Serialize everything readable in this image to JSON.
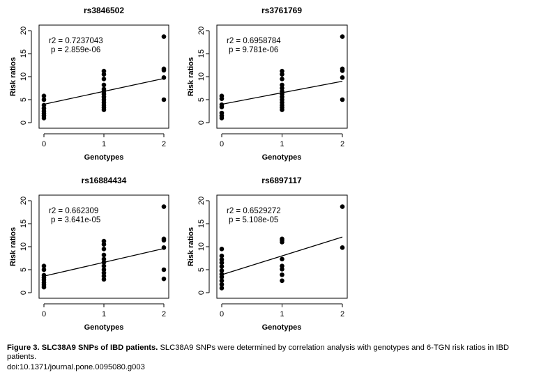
{
  "chart_data": [
    {
      "type": "scatter",
      "title": "rs3846502",
      "xlabel": "Genotypes",
      "ylabel": "Risk ratios",
      "xticks": [
        "0",
        "1",
        "2"
      ],
      "yticks": [
        "0",
        "5",
        "10",
        "15",
        "20"
      ],
      "xlim": [
        0,
        2
      ],
      "ylim": [
        0,
        20
      ],
      "stats": [
        "r2 = 0.7237043",
        "p = 2.859e-06"
      ],
      "fit_line": {
        "intercept": 4.0,
        "slope": 2.8
      },
      "points": [
        {
          "x": 0,
          "y": 5.8
        },
        {
          "x": 0,
          "y": 5.0
        },
        {
          "x": 0,
          "y": 3.8
        },
        {
          "x": 0,
          "y": 3.1
        },
        {
          "x": 0,
          "y": 2.5
        },
        {
          "x": 0,
          "y": 2.0
        },
        {
          "x": 0,
          "y": 1.5
        },
        {
          "x": 0,
          "y": 1.0
        },
        {
          "x": 1,
          "y": 11.2
        },
        {
          "x": 1,
          "y": 10.5
        },
        {
          "x": 1,
          "y": 9.5
        },
        {
          "x": 1,
          "y": 8.2
        },
        {
          "x": 1,
          "y": 7.3
        },
        {
          "x": 1,
          "y": 6.8
        },
        {
          "x": 1,
          "y": 6.2
        },
        {
          "x": 1,
          "y": 5.6
        },
        {
          "x": 1,
          "y": 5.0
        },
        {
          "x": 1,
          "y": 4.4
        },
        {
          "x": 1,
          "y": 3.8
        },
        {
          "x": 1,
          "y": 3.3
        },
        {
          "x": 1,
          "y": 2.8
        },
        {
          "x": 2,
          "y": 18.7
        },
        {
          "x": 2,
          "y": 11.7
        },
        {
          "x": 2,
          "y": 11.4
        },
        {
          "x": 2,
          "y": 9.8
        },
        {
          "x": 2,
          "y": 5.0
        }
      ]
    },
    {
      "type": "scatter",
      "title": "rs3761769",
      "xlabel": "Genotypes",
      "ylabel": "Risk ratios",
      "xticks": [
        "0",
        "1",
        "2"
      ],
      "yticks": [
        "0",
        "5",
        "10",
        "15",
        "20"
      ],
      "xlim": [
        0,
        2
      ],
      "ylim": [
        0,
        20
      ],
      "stats": [
        "r2 = 0.6958784",
        "p = 9.781e-06"
      ],
      "fit_line": {
        "intercept": 4.0,
        "slope": 2.5
      },
      "points": [
        {
          "x": 0,
          "y": 5.8
        },
        {
          "x": 0,
          "y": 5.2
        },
        {
          "x": 0,
          "y": 3.9
        },
        {
          "x": 0,
          "y": 3.4
        },
        {
          "x": 0,
          "y": 2.1
        },
        {
          "x": 0,
          "y": 1.5
        },
        {
          "x": 0,
          "y": 1.0
        },
        {
          "x": 1,
          "y": 11.2
        },
        {
          "x": 1,
          "y": 10.5
        },
        {
          "x": 1,
          "y": 9.5
        },
        {
          "x": 1,
          "y": 8.2
        },
        {
          "x": 1,
          "y": 7.5
        },
        {
          "x": 1,
          "y": 6.8
        },
        {
          "x": 1,
          "y": 6.2
        },
        {
          "x": 1,
          "y": 5.6
        },
        {
          "x": 1,
          "y": 5.0
        },
        {
          "x": 1,
          "y": 4.4
        },
        {
          "x": 1,
          "y": 3.8
        },
        {
          "x": 1,
          "y": 3.3
        },
        {
          "x": 1,
          "y": 2.8
        },
        {
          "x": 2,
          "y": 18.7
        },
        {
          "x": 2,
          "y": 11.7
        },
        {
          "x": 2,
          "y": 11.3
        },
        {
          "x": 2,
          "y": 9.8
        },
        {
          "x": 2,
          "y": 5.0
        }
      ]
    },
    {
      "type": "scatter",
      "title": "rs16884434",
      "xlabel": "Genotypes",
      "ylabel": "Risk ratios",
      "xticks": [
        "0",
        "1",
        "2"
      ],
      "yticks": [
        "0",
        "5",
        "10",
        "15",
        "20"
      ],
      "xlim": [
        0,
        2
      ],
      "ylim": [
        0,
        20
      ],
      "stats": [
        "r2 = 0.662309",
        "p = 3.641e-05"
      ],
      "fit_line": {
        "intercept": 3.6,
        "slope": 3.0
      },
      "points": [
        {
          "x": 0,
          "y": 5.8
        },
        {
          "x": 0,
          "y": 5.0
        },
        {
          "x": 0,
          "y": 3.8
        },
        {
          "x": 0,
          "y": 3.3
        },
        {
          "x": 0,
          "y": 2.8
        },
        {
          "x": 0,
          "y": 2.2
        },
        {
          "x": 0,
          "y": 1.7
        },
        {
          "x": 0,
          "y": 1.2
        },
        {
          "x": 1,
          "y": 11.2
        },
        {
          "x": 1,
          "y": 10.5
        },
        {
          "x": 1,
          "y": 9.5
        },
        {
          "x": 1,
          "y": 8.2
        },
        {
          "x": 1,
          "y": 7.3
        },
        {
          "x": 1,
          "y": 6.6
        },
        {
          "x": 1,
          "y": 5.8
        },
        {
          "x": 1,
          "y": 5.0
        },
        {
          "x": 1,
          "y": 4.3
        },
        {
          "x": 1,
          "y": 3.6
        },
        {
          "x": 1,
          "y": 2.9
        },
        {
          "x": 2,
          "y": 18.7
        },
        {
          "x": 2,
          "y": 11.7
        },
        {
          "x": 2,
          "y": 11.4
        },
        {
          "x": 2,
          "y": 9.8
        },
        {
          "x": 2,
          "y": 5.0
        },
        {
          "x": 2,
          "y": 3.0
        }
      ]
    },
    {
      "type": "scatter",
      "title": "rs6897117",
      "xlabel": "Genotypes",
      "ylabel": "Risk ratios",
      "xticks": [
        "0",
        "1",
        "2"
      ],
      "yticks": [
        "0",
        "5",
        "10",
        "15",
        "20"
      ],
      "xlim": [
        0,
        2
      ],
      "ylim": [
        0,
        20
      ],
      "stats": [
        "r2 = 0.6529272",
        "p = 5.108e-05"
      ],
      "fit_line": {
        "intercept": 3.9,
        "slope": 4.1
      },
      "points": [
        {
          "x": 0,
          "y": 9.5
        },
        {
          "x": 0,
          "y": 8.0
        },
        {
          "x": 0,
          "y": 7.2
        },
        {
          "x": 0,
          "y": 6.5
        },
        {
          "x": 0,
          "y": 5.7
        },
        {
          "x": 0,
          "y": 4.8
        },
        {
          "x": 0,
          "y": 4.0
        },
        {
          "x": 0,
          "y": 3.4
        },
        {
          "x": 0,
          "y": 2.6
        },
        {
          "x": 0,
          "y": 1.8
        },
        {
          "x": 0,
          "y": 1.0
        },
        {
          "x": 1,
          "y": 11.7
        },
        {
          "x": 1,
          "y": 11.4
        },
        {
          "x": 1,
          "y": 11.0
        },
        {
          "x": 1,
          "y": 7.3
        },
        {
          "x": 1,
          "y": 5.8
        },
        {
          "x": 1,
          "y": 5.1
        },
        {
          "x": 1,
          "y": 3.9
        },
        {
          "x": 1,
          "y": 2.6
        },
        {
          "x": 2,
          "y": 18.7
        },
        {
          "x": 2,
          "y": 9.8
        }
      ]
    }
  ],
  "caption": {
    "label": "Figure 3. SLC38A9 SNPs of IBD patients.",
    "text": " SLC38A9 SNPs were determined by correlation analysis with genotypes and 6-TGN risk ratios in IBD patients.",
    "doi": "doi:10.1371/journal.pone.0095080.g003"
  }
}
